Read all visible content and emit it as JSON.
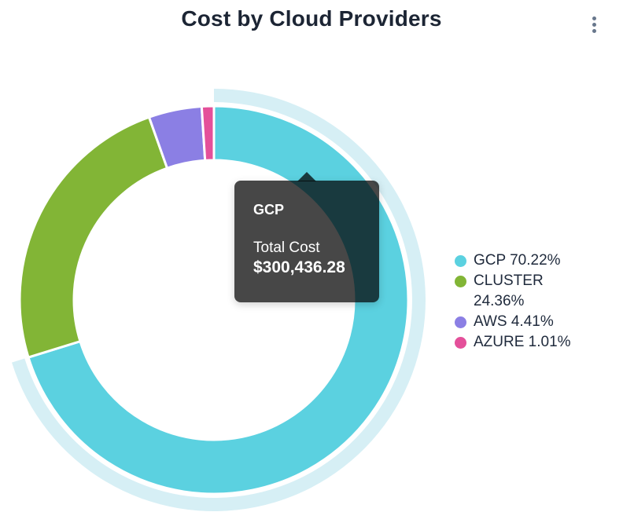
{
  "header": {
    "title": "Cost by Cloud Providers"
  },
  "chart_data": {
    "type": "pie",
    "subtype": "donut",
    "title": "Cost by Cloud Providers",
    "direction": "clockwise",
    "start_angle": "12-oclock",
    "legend_position": "right",
    "hovered_segment": "GCP",
    "categories": [
      "GCP",
      "CLUSTER",
      "AWS",
      "AZURE"
    ],
    "values": [
      70.22,
      24.36,
      4.41,
      1.01
    ],
    "series": [
      {
        "name": "GCP",
        "percent": 70.22,
        "color": "#5BD1E0",
        "legend_label": "GCP 70.22%"
      },
      {
        "name": "CLUSTER",
        "percent": 24.36,
        "color": "#82B536",
        "legend_label": "CLUSTER 24.36%"
      },
      {
        "name": "AWS",
        "percent": 4.41,
        "color": "#8B7FE4",
        "legend_label": "AWS 4.41%"
      },
      {
        "name": "AZURE",
        "percent": 1.01,
        "color": "#E4509A",
        "legend_label": "AZURE 1.01%"
      }
    ],
    "tooltip": {
      "segment": "GCP",
      "metric": "Total Cost",
      "value": "$300,436.28"
    }
  },
  "tooltip": {
    "title": "GCP",
    "label": "Total Cost",
    "value": "$300,436.28"
  },
  "colors": {
    "background": "#FFFFFF",
    "title_text": "#1C2534",
    "legend_text": "#1F2A3C",
    "menu_icon": "#68778C",
    "slice_border": "#FFFFFF",
    "highlight_ring": "#D6EFF5",
    "tooltip_bg": "rgba(0, 0, 0, 0.72)",
    "tooltip_text": "#FFFFFF"
  }
}
